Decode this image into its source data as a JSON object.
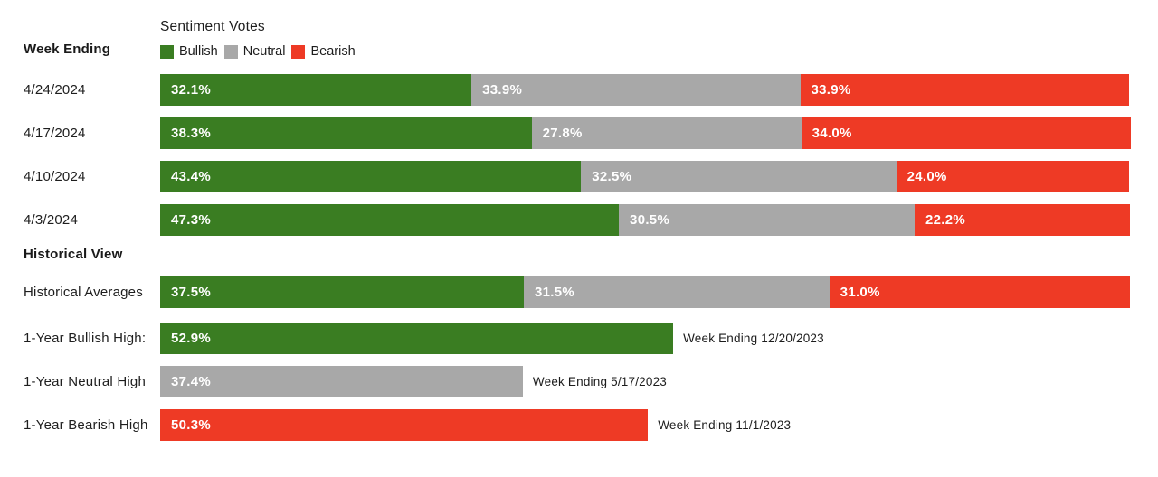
{
  "header": {
    "week_ending_label": "Week Ending",
    "title": "Sentiment Votes",
    "section_label": "Historical View"
  },
  "legend": {
    "items": [
      {
        "name": "bullish",
        "label": "Bullish",
        "color": "#3A7D22"
      },
      {
        "name": "neutral",
        "label": "Neutral",
        "color": "#A8A8A8"
      },
      {
        "name": "bearish",
        "label": "Bearish",
        "color": "#EE3A25"
      }
    ]
  },
  "chart_data": {
    "type": "bar",
    "orientation": "horizontal_stacked",
    "unit": "%",
    "xlim": [
      0,
      100
    ],
    "grid": false,
    "legend_position": "top",
    "series_names": [
      "Bullish",
      "Neutral",
      "Bearish"
    ],
    "series_colors": {
      "Bullish": "#3A7D22",
      "Neutral": "#A8A8A8",
      "Bearish": "#EE3A25"
    },
    "weekly": {
      "categories": [
        "4/24/2024",
        "4/17/2024",
        "4/10/2024",
        "4/3/2024"
      ],
      "series": [
        {
          "name": "Bullish",
          "values": [
            32.1,
            38.3,
            43.4,
            47.3
          ]
        },
        {
          "name": "Neutral",
          "values": [
            33.9,
            27.8,
            32.5,
            30.5
          ]
        },
        {
          "name": "Bearish",
          "values": [
            33.9,
            34.0,
            24.0,
            22.2
          ]
        }
      ]
    },
    "historical": {
      "rows": [
        {
          "label": "Historical Averages",
          "kind": "stacked",
          "values": {
            "Bullish": 37.5,
            "Neutral": 31.5,
            "Bearish": 31.0
          }
        },
        {
          "label": "1-Year Bullish High:",
          "kind": "single",
          "series": "Bullish",
          "value": 52.9,
          "annotation": "Week Ending 12/20/2023"
        },
        {
          "label": "1-Year Neutral High",
          "kind": "single",
          "series": "Neutral",
          "value": 37.4,
          "annotation": "Week Ending 5/17/2023"
        },
        {
          "label": "1-Year Bearish High",
          "kind": "single",
          "series": "Bearish",
          "value": 50.3,
          "annotation": "Week Ending 11/1/2023"
        }
      ]
    }
  }
}
